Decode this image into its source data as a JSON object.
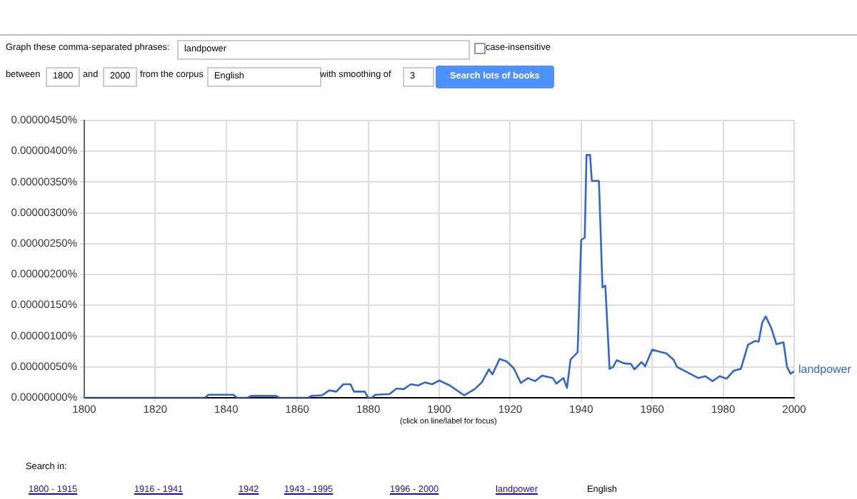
{
  "chart_data": {
    "type": "line",
    "x": [
      1800,
      1834,
      1835,
      1842,
      1843,
      1846,
      1847,
      1854,
      1855,
      1863,
      1864,
      1867,
      1869,
      1871,
      1873,
      1875,
      1876,
      1879,
      1880,
      1881,
      1882,
      1886,
      1888,
      1890,
      1892,
      1894,
      1896,
      1898,
      1900,
      1903,
      1905,
      1907,
      1910,
      1912,
      1914,
      1915,
      1917,
      1919,
      1921,
      1923,
      1925,
      1927,
      1929,
      1932,
      1933,
      1935,
      1936,
      1937,
      1939,
      1940,
      1941,
      1941.5,
      1942.5,
      1943,
      1945,
      1946,
      1946.8,
      1948,
      1949,
      1950,
      1952,
      1954,
      1955,
      1957,
      1958,
      1960,
      1962,
      1964,
      1966,
      1967,
      1969,
      1971,
      1973,
      1975,
      1977,
      1979,
      1981,
      1983,
      1985,
      1987,
      1989,
      1990,
      1991,
      1992,
      1993.5,
      1995,
      1997,
      1998,
      1999,
      2000
    ],
    "series": [
      {
        "name": "landpower",
        "color": "#3366cc",
        "values": [
          0,
          0,
          5e-08,
          5e-08,
          0,
          0,
          3e-08,
          3e-08,
          0,
          0,
          3e-08,
          4e-08,
          1.2e-07,
          1e-07,
          2.2e-07,
          2.2e-07,
          1e-07,
          1e-07,
          0,
          0,
          5e-08,
          6e-08,
          1.5e-07,
          1.4e-07,
          2.2e-07,
          2e-07,
          2.5e-07,
          2.2e-07,
          2.8e-07,
          2e-07,
          1.2e-07,
          4e-08,
          1.4e-07,
          2.5e-07,
          4.6e-07,
          3.8e-07,
          6.3e-07,
          5.9e-07,
          4.8e-07,
          2.4e-07,
          3.2e-07,
          2.7e-07,
          3.6e-07,
          3.2e-07,
          2.3e-07,
          3.2e-07,
          1.6e-07,
          6.2e-07,
          7.4e-07,
          2.56e-06,
          2.6e-06,
          3.94e-06,
          3.94e-06,
          3.52e-06,
          3.52e-06,
          1.79e-06,
          1.82e-06,
          4.7e-07,
          5e-07,
          6.1e-07,
          5.6e-07,
          5.5e-07,
          4.6e-07,
          5.8e-07,
          5.1e-07,
          7.8e-07,
          7.5e-07,
          7.2e-07,
          6.2e-07,
          5e-07,
          4.4e-07,
          3.8e-07,
          3.2e-07,
          3.5e-07,
          2.7e-07,
          3.5e-07,
          3.1e-07,
          4.4e-07,
          4.7e-07,
          8.6e-07,
          9.2e-07,
          9.1e-07,
          1.22e-06,
          1.32e-06,
          1.14e-06,
          8.7e-07,
          9e-07,
          5e-07,
          3.9e-07,
          4.3e-07
        ]
      }
    ],
    "xlim": [
      1800,
      2000
    ],
    "xticks": [
      1800,
      1820,
      1840,
      1860,
      1880,
      1900,
      1920,
      1940,
      1960,
      1980,
      2000
    ],
    "ylim": [
      0,
      4.5e-06
    ],
    "yticks": [
      {
        "value": 0,
        "label": "0.00000000%"
      },
      {
        "value": 5e-07,
        "label": "0.00000050%"
      },
      {
        "value": 1e-06,
        "label": "0.00000100%"
      },
      {
        "value": 1.5e-06,
        "label": "0.00000150%"
      },
      {
        "value": 2e-06,
        "label": "0.00000200%"
      },
      {
        "value": 2.5e-06,
        "label": "0.00000250%"
      },
      {
        "value": 3e-06,
        "label": "0.00000300%"
      },
      {
        "value": 3.5e-06,
        "label": "0.00000350%"
      },
      {
        "value": 4e-06,
        "label": "0.00000400%"
      },
      {
        "value": 4.5e-06,
        "label": "0.00000450%"
      }
    ],
    "grid": true,
    "legend": false,
    "marker": "none",
    "line_style": "solid",
    "annotations": [
      "Graph these comma-separated phrases:",
      "landpower",
      "case-insensitive",
      "between",
      "1800",
      "and",
      "2000",
      "from the corpus",
      "English",
      "with smoothing of",
      "3",
      "Search lots of books",
      "(click on line/label for focus)",
      "Search in:",
      "1800 - 1915",
      "1916 - 1941",
      "1942",
      "1943 - 1995",
      "1996 - 2000",
      "landpower",
      "English"
    ]
  }
}
